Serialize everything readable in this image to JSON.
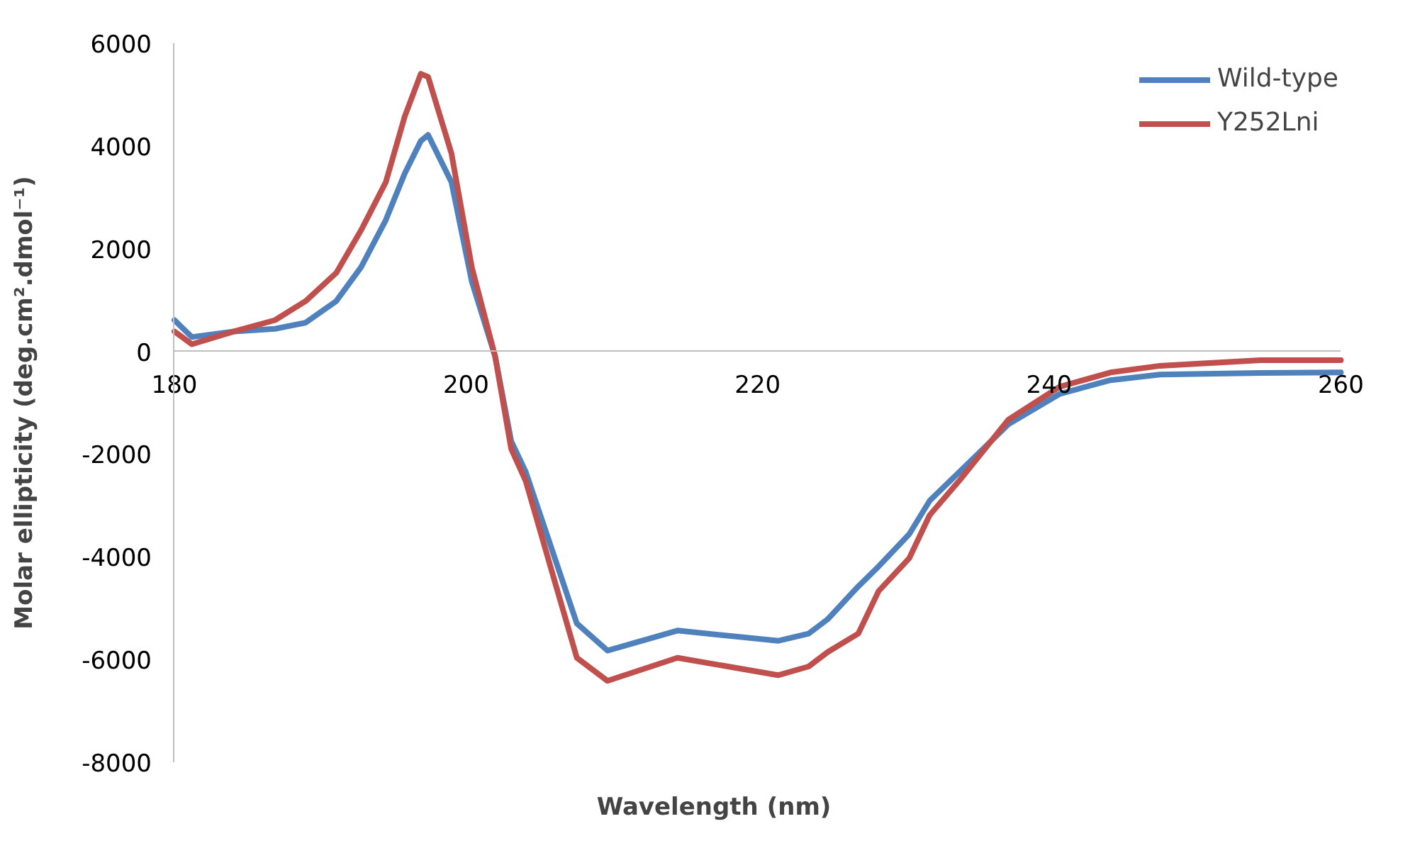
{
  "chart_data": {
    "type": "line",
    "xlabel": "Wavelength (nm)",
    "ylabel": "Molar ellipticity (deg.cm².dmol⁻¹)",
    "x": [
      180,
      181.2,
      184.1,
      186.9,
      189.0,
      191.1,
      192.8,
      194.5,
      195.8,
      196.9,
      197.4,
      199.0,
      200.4,
      202.0,
      203.1,
      204.1,
      207.6,
      209.7,
      214.5,
      221.4,
      223.5,
      224.8,
      226.9,
      228.3,
      230.4,
      231.8,
      233.8,
      237.2,
      240.7,
      244.2,
      247.6,
      254.5,
      260
    ],
    "series": [
      {
        "name": "Wild-type",
        "color": "#4f81bd",
        "values": [
          610,
          280,
          390,
          440,
          560,
          980,
          1640,
          2560,
          3470,
          4100,
          4220,
          3300,
          1360,
          -100,
          -1750,
          -2350,
          -5300,
          -5830,
          -5440,
          -5640,
          -5500,
          -5220,
          -4580,
          -4190,
          -3560,
          -2910,
          -2360,
          -1420,
          -830,
          -560,
          -450,
          -420,
          -410
        ]
      },
      {
        "name": "Y252Lni",
        "color": "#c0504d",
        "values": [
          390,
          140,
          390,
          610,
          980,
          1530,
          2360,
          3300,
          4580,
          5410,
          5350,
          3860,
          1640,
          -100,
          -1900,
          -2530,
          -5970,
          -6420,
          -5970,
          -6310,
          -6140,
          -5860,
          -5500,
          -4670,
          -4030,
          -3190,
          -2530,
          -1330,
          -690,
          -410,
          -280,
          -170,
          -170
        ]
      }
    ],
    "xlim": [
      180,
      260
    ],
    "xticks": [
      180,
      200,
      220,
      240,
      260
    ],
    "ylim": [
      -8000,
      6000
    ],
    "yticks": [
      -8000,
      -6000,
      -4000,
      -2000,
      0,
      2000,
      4000,
      6000
    ],
    "grid": false,
    "legend": "top right",
    "marker": "none",
    "line_style": "solid"
  }
}
